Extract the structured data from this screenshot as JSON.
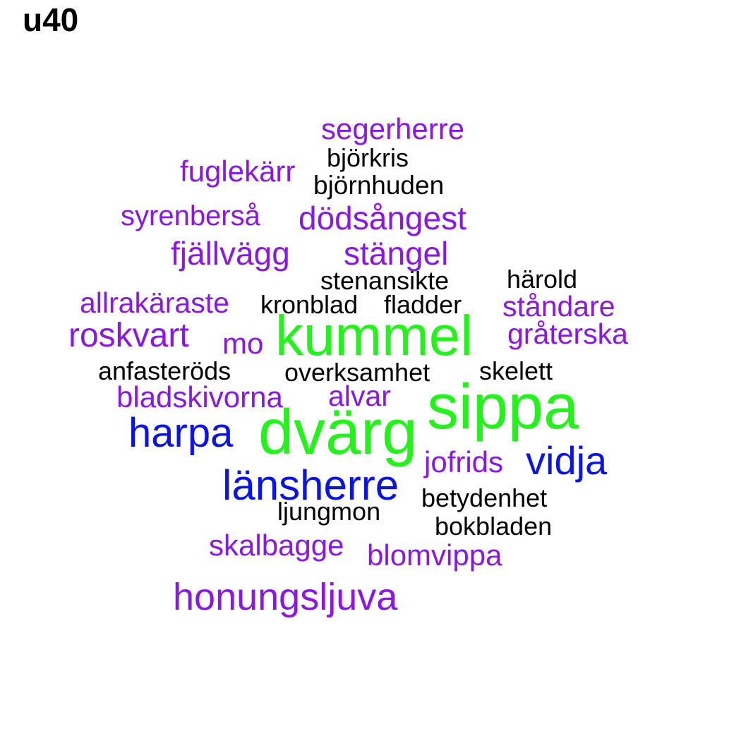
{
  "title": "u40",
  "colors": {
    "black": "#000000",
    "purple": "#8a17e6",
    "blue": "#0a14e8",
    "green": "#22f41a"
  },
  "words": [
    {
      "text": "segerherre",
      "color": "purple"
    },
    {
      "text": "björkris",
      "color": "black"
    },
    {
      "text": "fuglekärr",
      "color": "purple"
    },
    {
      "text": "björnhuden",
      "color": "black"
    },
    {
      "text": "syrenberså",
      "color": "purple"
    },
    {
      "text": "dödsångest",
      "color": "purple"
    },
    {
      "text": "fjällvägg",
      "color": "purple"
    },
    {
      "text": "stängel",
      "color": "purple"
    },
    {
      "text": "härold",
      "color": "black"
    },
    {
      "text": "stenansikte",
      "color": "black"
    },
    {
      "text": "allrakäraste",
      "color": "purple"
    },
    {
      "text": "kronblad",
      "color": "black"
    },
    {
      "text": "fladder",
      "color": "black"
    },
    {
      "text": "ståndare",
      "color": "purple"
    },
    {
      "text": "roskvart",
      "color": "purple"
    },
    {
      "text": "mo",
      "color": "purple"
    },
    {
      "text": "kummel",
      "color": "green"
    },
    {
      "text": "gråterska",
      "color": "purple"
    },
    {
      "text": "anfasteröds",
      "color": "black"
    },
    {
      "text": "overksamhet",
      "color": "black"
    },
    {
      "text": "skelett",
      "color": "black"
    },
    {
      "text": "bladskivorna",
      "color": "purple"
    },
    {
      "text": "alvar",
      "color": "purple"
    },
    {
      "text": "sippa",
      "color": "green"
    },
    {
      "text": "harpa",
      "color": "blue"
    },
    {
      "text": "dvärg",
      "color": "green"
    },
    {
      "text": "jofrids",
      "color": "purple"
    },
    {
      "text": "vidja",
      "color": "blue"
    },
    {
      "text": "länsherre",
      "color": "blue"
    },
    {
      "text": "betydenhet",
      "color": "black"
    },
    {
      "text": "ljungmon",
      "color": "black"
    },
    {
      "text": "bokbladen",
      "color": "black"
    },
    {
      "text": "skalbagge",
      "color": "purple"
    },
    {
      "text": "blomvippa",
      "color": "purple"
    },
    {
      "text": "honungsljuva",
      "color": "purple"
    }
  ]
}
